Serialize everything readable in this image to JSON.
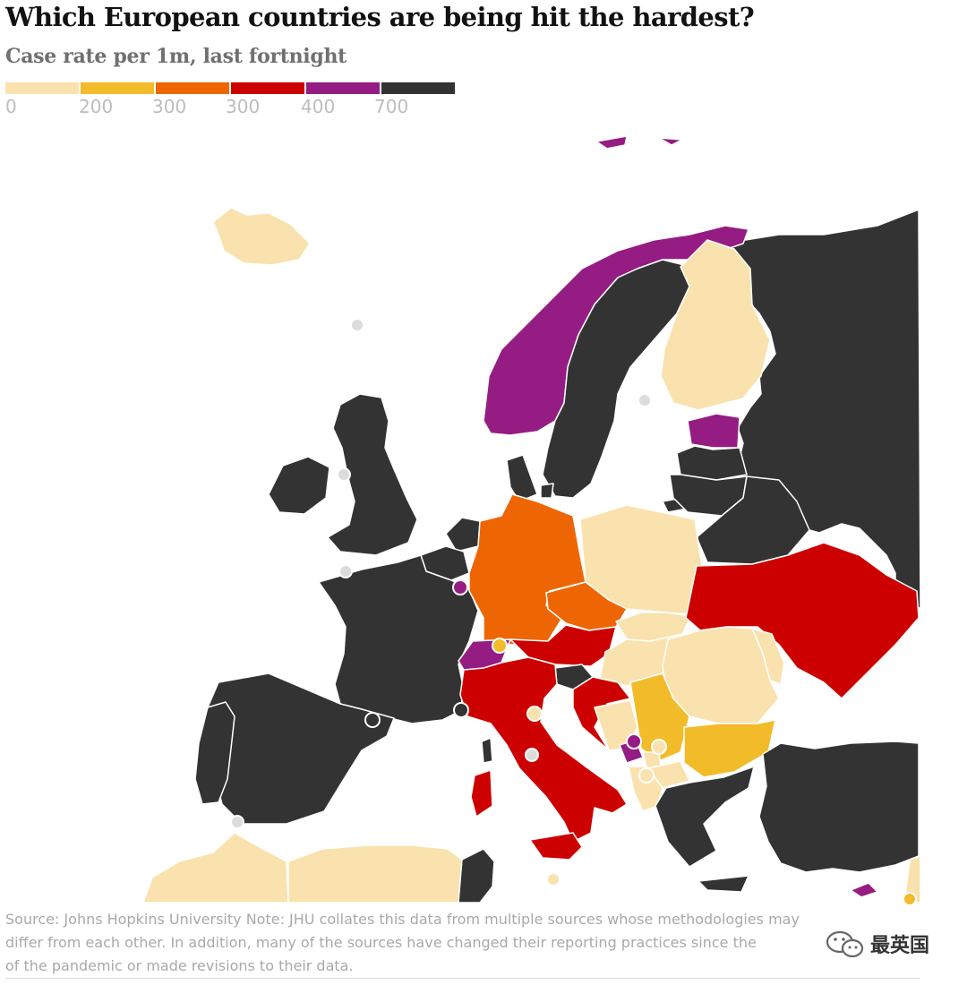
{
  "title": "Which European countries are being hit the hardest?",
  "subtitle": "Case rate per 1m, last fortnight",
  "colors": {
    "lt_0_200": "#f9e2ad",
    "c200_300": "#f2bb2a",
    "c300_300": "#ee6604",
    "c300_400": "#cd0000",
    "c400_700": "#951c83",
    "gt_700": "#333333",
    "no_data": "#dcdcdc",
    "border": "#ffffff",
    "sea": "#ffffff"
  },
  "legend": {
    "bins": [
      {
        "label": "0",
        "color": "#f9e2ad"
      },
      {
        "label": "200",
        "color": "#f2bb2a"
      },
      {
        "label": "300",
        "color": "#ee6604"
      },
      {
        "label": "300",
        "color": "#cd0000"
      },
      {
        "label": "400",
        "color": "#951c83"
      },
      {
        "label": "700",
        "color": "#333333"
      }
    ]
  },
  "countries": [
    {
      "name": "Iceland",
      "bin": "0-200"
    },
    {
      "name": "Norway",
      "bin": "400-700"
    },
    {
      "name": "Sweden",
      "bin": ">700"
    },
    {
      "name": "Finland",
      "bin": "0-200"
    },
    {
      "name": "Russia",
      "bin": ">700"
    },
    {
      "name": "Estonia",
      "bin": "400-700"
    },
    {
      "name": "Latvia",
      "bin": ">700"
    },
    {
      "name": "Lithuania",
      "bin": ">700"
    },
    {
      "name": "Belarus",
      "bin": ">700"
    },
    {
      "name": "Ireland",
      "bin": ">700"
    },
    {
      "name": "United Kingdom",
      "bin": ">700"
    },
    {
      "name": "Denmark",
      "bin": ">700"
    },
    {
      "name": "Netherlands",
      "bin": ">700"
    },
    {
      "name": "Belgium",
      "bin": ">700"
    },
    {
      "name": "Luxembourg",
      "bin": "400-700"
    },
    {
      "name": "Germany",
      "bin": "300-300"
    },
    {
      "name": "Poland",
      "bin": "0-200"
    },
    {
      "name": "Czechia",
      "bin": "300-300"
    },
    {
      "name": "Slovakia",
      "bin": "0-200"
    },
    {
      "name": "Austria",
      "bin": "300-400"
    },
    {
      "name": "Hungary",
      "bin": "0-200"
    },
    {
      "name": "Ukraine",
      "bin": "300-400"
    },
    {
      "name": "Moldova",
      "bin": "0-200"
    },
    {
      "name": "Romania",
      "bin": "0-200"
    },
    {
      "name": "France",
      "bin": ">700"
    },
    {
      "name": "Switzerland",
      "bin": "400-700"
    },
    {
      "name": "Liechtenstein",
      "bin": "200-300"
    },
    {
      "name": "Italy",
      "bin": "300-400"
    },
    {
      "name": "Slovenia",
      "bin": ">700"
    },
    {
      "name": "Croatia",
      "bin": "300-400"
    },
    {
      "name": "Bosnia and Herzegovina",
      "bin": "0-200"
    },
    {
      "name": "Serbia",
      "bin": "200-300"
    },
    {
      "name": "Montenegro",
      "bin": "400-700"
    },
    {
      "name": "Kosovo",
      "bin": "0-200"
    },
    {
      "name": "North Macedonia",
      "bin": "0-200"
    },
    {
      "name": "Albania",
      "bin": "0-200"
    },
    {
      "name": "Bulgaria",
      "bin": "200-300"
    },
    {
      "name": "Greece",
      "bin": ">700"
    },
    {
      "name": "Turkey",
      "bin": ">700"
    },
    {
      "name": "Cyprus",
      "bin": "400-700"
    },
    {
      "name": "Spain",
      "bin": ">700"
    },
    {
      "name": "Portugal",
      "bin": ">700"
    },
    {
      "name": "Morocco",
      "bin": "0-200"
    },
    {
      "name": "Algeria",
      "bin": "0-200"
    },
    {
      "name": "Tunisia",
      "bin": ">700"
    },
    {
      "name": "Malta",
      "bin": "0-200"
    },
    {
      "name": "Faroe Islands",
      "bin": "no data"
    },
    {
      "name": "Isle of Man",
      "bin": "no data"
    },
    {
      "name": "Channel Islands",
      "bin": "no data"
    },
    {
      "name": "Andorra",
      "bin": ">700"
    },
    {
      "name": "Monaco",
      "bin": ">700"
    },
    {
      "name": "San Marino",
      "bin": "0-200"
    },
    {
      "name": "Vatican",
      "bin": "no data"
    },
    {
      "name": "Gibraltar",
      "bin": "no data"
    }
  ],
  "source": {
    "line1": "Source: Johns Hopkins University Note: JHU collates this data from multiple sources whose methodologies may",
    "line2": "differ from each other. In addition, many of the sources have changed their reporting practices since the",
    "line3": "of the pandemic or made revisions to their data."
  },
  "watermark": {
    "text": "最英国",
    "icon": "wechat-icon"
  }
}
